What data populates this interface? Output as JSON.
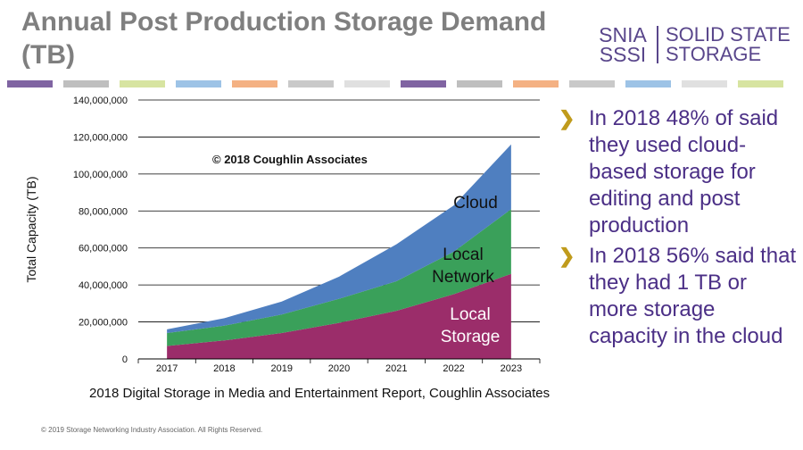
{
  "title": "Annual Post Production Storage Demand (TB)",
  "logo": {
    "snia": "SNIA",
    "sssi": "SSSI",
    "line1": "SOLID STATE",
    "line2": "STORAGE"
  },
  "stripe_colors": [
    "#8064a2",
    "#bfbfbf",
    "#d7e4a1",
    "#9dc3e6",
    "#f4b183",
    "#c9c9c9",
    "#e0e0e0",
    "#8064a2",
    "#bfbfbf",
    "#f4b183",
    "#c9c9c9",
    "#9dc3e6",
    "#e0e0e0",
    "#d7e4a1"
  ],
  "chart_data": {
    "type": "area",
    "stacked": true,
    "x": [
      "2017",
      "2018",
      "2019",
      "2020",
      "2021",
      "2022",
      "2023"
    ],
    "series": [
      {
        "name": "Local Storage",
        "color": "#9b2d6a",
        "values": [
          7000000,
          10000000,
          14000000,
          19500000,
          26000000,
          35000000,
          46000000
        ],
        "label_lines": [
          "Local",
          "Storage"
        ]
      },
      {
        "name": "Local Network",
        "color": "#3aa05a",
        "values": [
          7000000,
          8000000,
          10000000,
          13000000,
          16000000,
          23000000,
          35000000
        ],
        "label_lines": [
          "Local",
          "Network"
        ]
      },
      {
        "name": "Cloud",
        "color": "#4f7fc0",
        "values": [
          2000000,
          4000000,
          7000000,
          12000000,
          20000000,
          25000000,
          35000000
        ],
        "label_lines": [
          "Cloud"
        ]
      }
    ],
    "ylabel": "Total Capacity (TB)",
    "y_ticks": [
      "0",
      "20,000,000",
      "40,000,000",
      "60,000,000",
      "80,000,000",
      "100,000,000",
      "120,000,000",
      "140,000,000"
    ],
    "ylim": [
      0,
      140000000
    ],
    "grid": true,
    "annotation": "© 2018 Coughlin Associates"
  },
  "bullets": [
    "In 2018 48% of said they used cloud-based storage for editing and post production",
    "In 2018 56% said that they had 1 TB or more storage capacity in the cloud"
  ],
  "source": "2018 Digital Storage in Media and Entertainment Report, Coughlin Associates",
  "copyright": "© 2019 Storage Networking Industry Association. All Rights Reserved."
}
